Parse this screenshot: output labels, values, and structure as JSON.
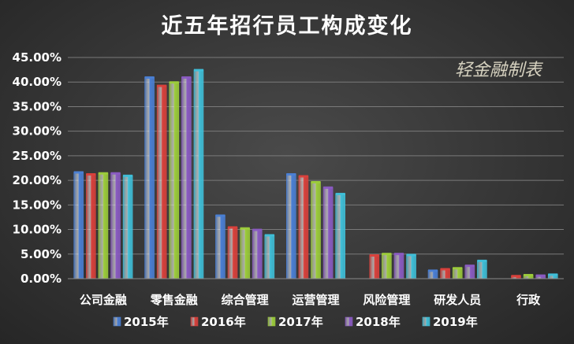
{
  "chart_data": {
    "type": "bar",
    "title": "近五年招行员工构成变化",
    "watermark": "轻金融制表",
    "xlabel": "",
    "ylabel": "",
    "ylim": [
      0,
      45
    ],
    "yticks": [
      "0.00%",
      "5.00%",
      "10.00%",
      "15.00%",
      "20.00%",
      "25.00%",
      "30.00%",
      "35.00%",
      "40.00%",
      "45.00%"
    ],
    "grid": true,
    "legend_position": "bottom",
    "categories": [
      "公司金融",
      "零售金融",
      "综合管理",
      "运营管理",
      "风险管理",
      "研发人员",
      "行政"
    ],
    "series": [
      {
        "name": "2015年",
        "color": "#4a7fd4",
        "values": [
          21.7,
          41.0,
          12.9,
          21.3,
          0.0,
          1.7,
          0.0
        ]
      },
      {
        "name": "2016年",
        "color": "#d9403b",
        "values": [
          21.3,
          39.3,
          10.5,
          20.9,
          4.8,
          2.0,
          0.6
        ]
      },
      {
        "name": "2017年",
        "color": "#9ccc3a",
        "values": [
          21.5,
          40.0,
          10.3,
          19.7,
          5.1,
          2.2,
          0.8
        ]
      },
      {
        "name": "2018年",
        "color": "#8a5bc2",
        "values": [
          21.5,
          41.0,
          10.0,
          18.6,
          5.1,
          2.7,
          0.7
        ]
      },
      {
        "name": "2019年",
        "color": "#3fbfd8",
        "values": [
          21.0,
          42.5,
          8.9,
          17.3,
          4.9,
          3.7,
          0.9
        ]
      }
    ]
  }
}
